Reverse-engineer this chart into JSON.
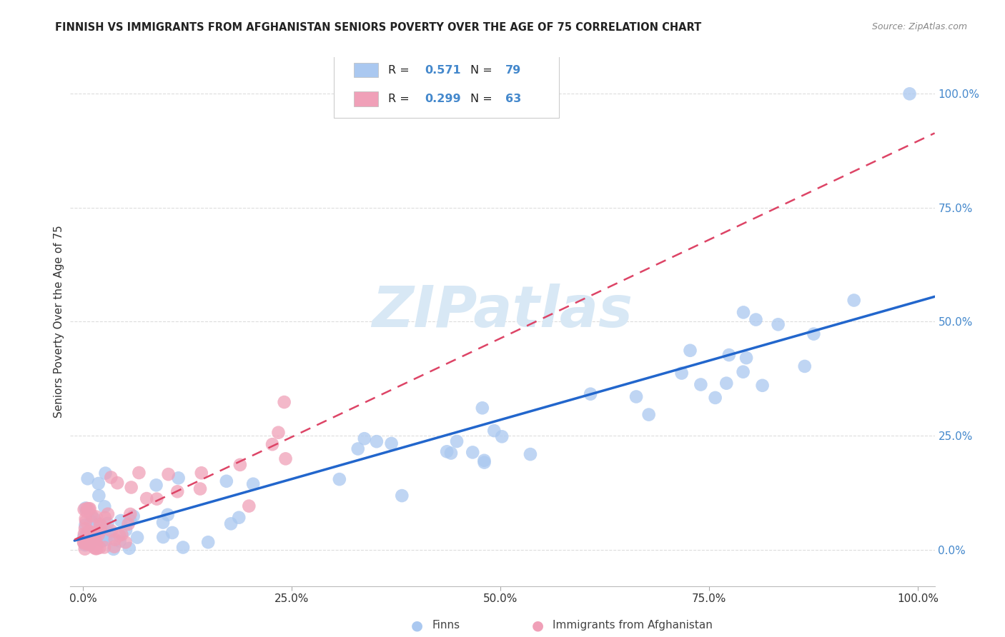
{
  "title": "FINNISH VS IMMIGRANTS FROM AFGHANISTAN SENIORS POVERTY OVER THE AGE OF 75 CORRELATION CHART",
  "source": "Source: ZipAtlas.com",
  "ylabel": "Seniors Poverty Over the Age of 75",
  "finns_R": 0.571,
  "finns_N": 79,
  "afghan_R": 0.299,
  "afghan_N": 63,
  "finns_color": "#aac8f0",
  "afghan_color": "#f0a0b8",
  "finns_line_color": "#2266cc",
  "afghan_line_color": "#dd4466",
  "right_label_color": "#4488cc",
  "background_color": "#ffffff",
  "grid_color": "#dddddd",
  "watermark_color": "#d8e8f5",
  "ytick_values": [
    0.0,
    0.25,
    0.5,
    0.75,
    1.0
  ],
  "ytick_labels": [
    "0.0%",
    "25.0%",
    "50.0%",
    "75.0%",
    "100.0%"
  ],
  "xtick_values": [
    0.0,
    0.25,
    0.5,
    0.75,
    1.0
  ],
  "xtick_labels": [
    "0.0%",
    "25.0%",
    "50.0%",
    "75.0%",
    "100.0%"
  ]
}
